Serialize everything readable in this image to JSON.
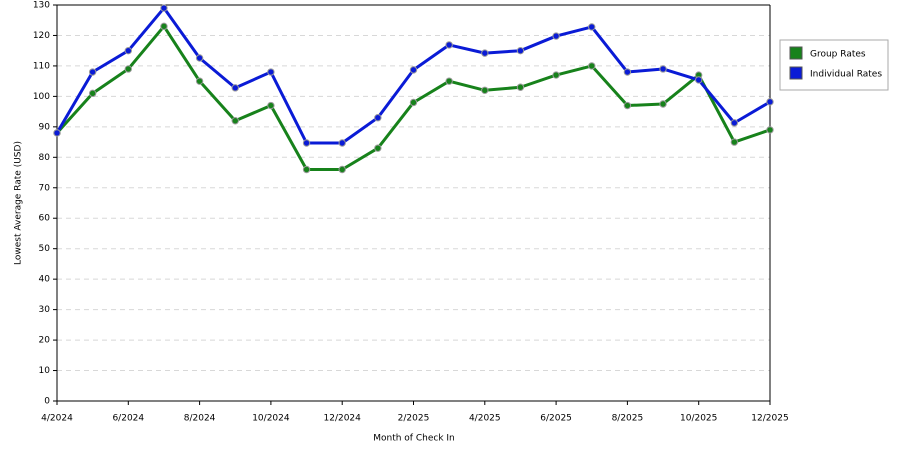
{
  "chart_data": {
    "type": "line",
    "x_label": "Month of Check In",
    "y_label": "Lowest Average Rate (USD)",
    "categories": [
      "4/2024",
      null,
      "6/2024",
      null,
      "8/2024",
      null,
      "10/2024",
      null,
      "12/2024",
      null,
      "2/2025",
      null,
      "4/2025",
      null,
      "6/2025",
      null,
      "8/2025",
      null,
      "10/2025",
      null,
      "12/2025"
    ],
    "series": [
      {
        "name": "Group Rates",
        "color": "#17821b",
        "values": [
          88,
          101,
          109,
          123,
          105,
          92,
          97,
          76,
          76,
          83,
          98,
          105,
          102,
          103,
          107,
          110,
          97,
          97.5,
          107,
          85,
          89
        ]
      },
      {
        "name": "Individual Rates",
        "color": "#0a1bd6",
        "values": [
          88,
          108,
          115,
          129,
          112.6,
          102.8,
          108,
          84.7,
          84.7,
          93,
          108.7,
          116.9,
          114.2,
          115,
          119.8,
          122.8,
          108,
          109,
          105.4,
          91.3,
          98.2
        ]
      }
    ],
    "ylim": [
      0,
      130
    ],
    "yticks": [
      0,
      10,
      20,
      30,
      40,
      50,
      60,
      70,
      80,
      90,
      100,
      110,
      120,
      130
    ],
    "grid": true,
    "legend": "right"
  }
}
